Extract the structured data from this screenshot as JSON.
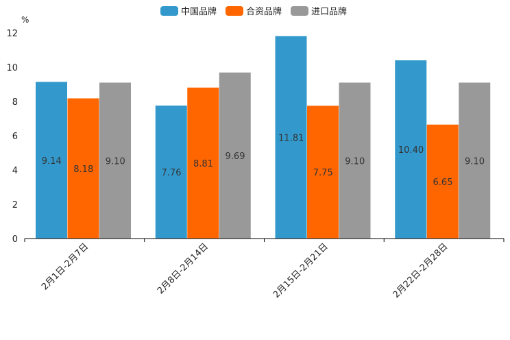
{
  "chart_data": {
    "type": "bar",
    "title": "",
    "xlabel": "",
    "ylabel": "%",
    "ylim": [
      0,
      12
    ],
    "yticks": [
      0,
      2,
      4,
      6,
      8,
      10,
      12
    ],
    "categories": [
      "2月1日-2月7日",
      "2月8日-2月14日",
      "2月15日-2月21日",
      "2月22日-2月28日"
    ],
    "series": [
      {
        "name": "中国品牌",
        "color": "#3399cc",
        "values": [
          9.14,
          7.76,
          11.81,
          10.4
        ],
        "labels": [
          "9.14",
          "7.76",
          "11.81",
          "10.40"
        ]
      },
      {
        "name": "合资品牌",
        "color": "#ff6600",
        "values": [
          8.18,
          8.81,
          7.75,
          6.65
        ],
        "labels": [
          "8.18",
          "8.81",
          "7.75",
          "6.65"
        ]
      },
      {
        "name": "进口品牌",
        "color": "#999999",
        "values": [
          9.1,
          9.69,
          9.1,
          9.1
        ],
        "labels": [
          "9.10",
          "9.69",
          "9.10",
          "9.10"
        ]
      }
    ],
    "legend_position": "top-center",
    "grid": false
  }
}
